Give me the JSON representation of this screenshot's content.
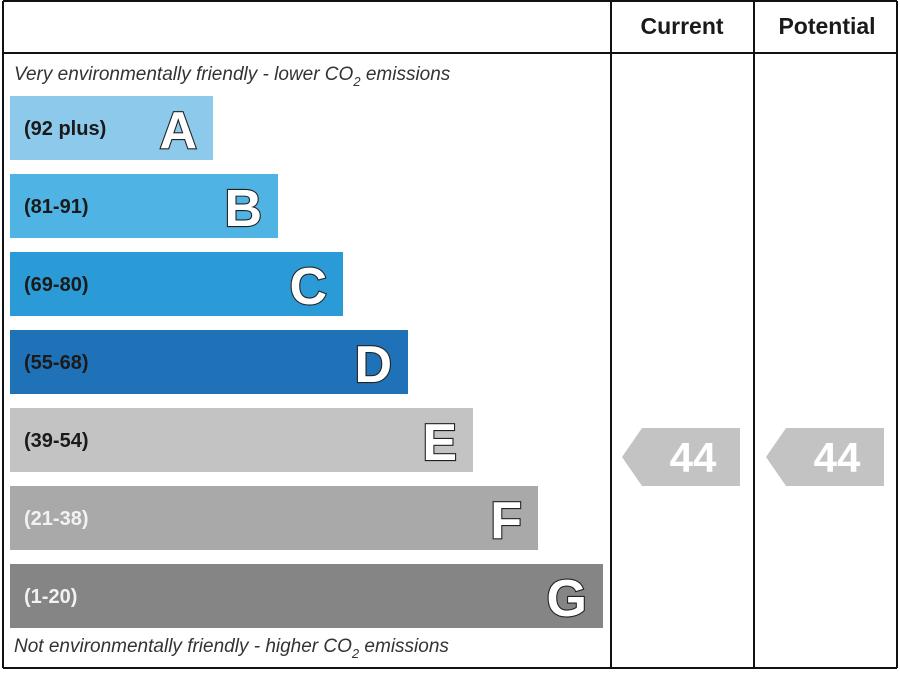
{
  "chart_data": {
    "type": "bar",
    "columns": {
      "current": "Current",
      "potential": "Potential"
    },
    "top_note": {
      "prefix": "Very environmentally friendly - lower CO",
      "sub": "2",
      "suffix": " emissions"
    },
    "bottom_note": {
      "prefix": "Not environmentally friendly - higher CO",
      "sub": "2",
      "suffix": " emissions"
    },
    "bands": [
      {
        "letter": "A",
        "range": "(92 plus)",
        "color": "#8cc9ea",
        "text_color": "#1a1a1a"
      },
      {
        "letter": "B",
        "range": "(81-91)",
        "color": "#4fb3e3",
        "text_color": "#1a1a1a"
      },
      {
        "letter": "C",
        "range": "(69-80)",
        "color": "#2a9bd6",
        "text_color": "#1a1a1a"
      },
      {
        "letter": "D",
        "range": "(55-68)",
        "color": "#1f72b8",
        "text_color": "#1a1a1a"
      },
      {
        "letter": "E",
        "range": "(39-54)",
        "color": "#c3c3c3",
        "text_color": "#1a1a1a"
      },
      {
        "letter": "F",
        "range": "(21-38)",
        "color": "#a9a9a9",
        "text_color": "#f2f2f2"
      },
      {
        "letter": "G",
        "range": "(1-20)",
        "color": "#858585",
        "text_color": "#f2f2f2"
      }
    ],
    "current": {
      "value": 44,
      "label": "44",
      "color": "#c3c3c3"
    },
    "potential": {
      "value": 44,
      "label": "44",
      "color": "#c3c3c3"
    }
  }
}
